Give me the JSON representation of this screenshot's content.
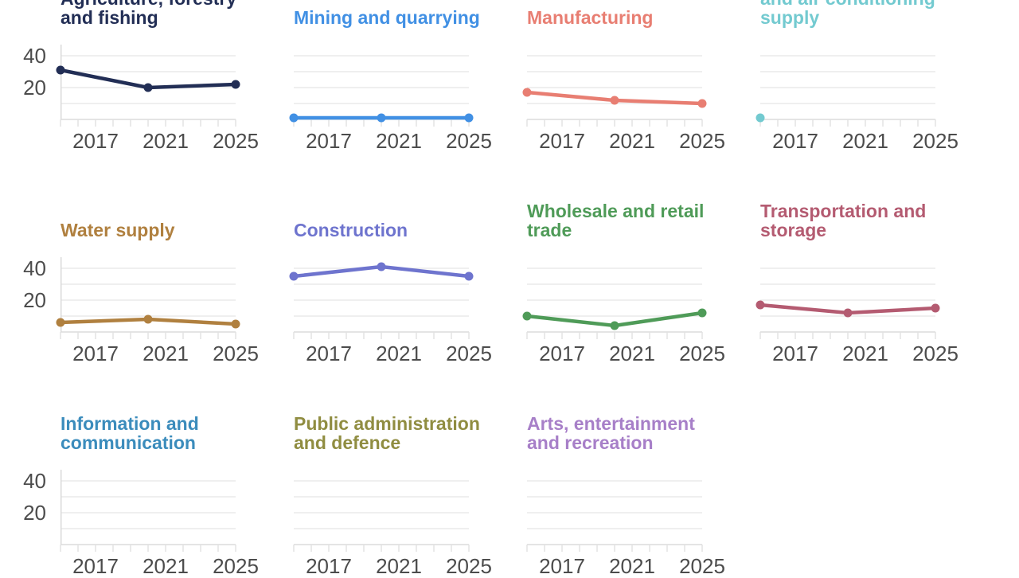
{
  "chart_data": {
    "type": "line",
    "layout": {
      "kind": "small-multiples",
      "grid": "4 columns x 3 rows, 11 panels, cropped at top and bottom",
      "x_points": [
        2015,
        2020,
        2025
      ],
      "x_range": [
        2015,
        2025
      ],
      "x_tick_labels": [
        "2017",
        "2021",
        "2025"
      ],
      "minor_x_ticks": "every year",
      "y_tick_labels": [
        "40",
        "20"
      ],
      "y_tick_values": [
        40,
        20
      ],
      "gridline_values": [
        10,
        20,
        30,
        40
      ],
      "ylim": [
        0,
        47
      ],
      "grid_on": true,
      "legend": "none - panel titles colored to match lines"
    },
    "series": [
      {
        "name": "Agriculture, forestry and fishing",
        "title_lines": [
          "Agriculture, forestry",
          "and fishing"
        ],
        "color": "#222e55",
        "values": [
          31,
          20,
          22
        ]
      },
      {
        "name": "Mining and quarrying",
        "title_lines": [
          "Mining and quarrying"
        ],
        "color": "#4190e4",
        "values": [
          1,
          1,
          1
        ]
      },
      {
        "name": "Manufacturing",
        "title_lines": [
          "Manufacturing"
        ],
        "color": "#e87e72",
        "values": [
          17,
          12,
          10
        ]
      },
      {
        "name": "and air conditioning supply",
        "title_lines": [
          "and air conditioning",
          "supply"
        ],
        "color": "#73cad0",
        "values": [
          1,
          null,
          null
        ]
      },
      {
        "name": "Water supply",
        "title_lines": [
          "Water supply"
        ],
        "color": "#b0803f",
        "values": [
          6,
          8,
          5
        ]
      },
      {
        "name": "Construction",
        "title_lines": [
          "Construction"
        ],
        "color": "#6e74ce",
        "values": [
          35,
          41,
          35
        ]
      },
      {
        "name": "Wholesale and retail trade",
        "title_lines": [
          "Wholesale and retail",
          "trade"
        ],
        "color": "#4f9b58",
        "values": [
          10,
          4,
          12
        ]
      },
      {
        "name": "Transportation and storage",
        "title_lines": [
          "Transportation and",
          "storage"
        ],
        "color": "#b45b71",
        "values": [
          17,
          12,
          15
        ]
      },
      {
        "name": "Information and communication",
        "title_lines": [
          "Information and",
          "communication"
        ],
        "color": "#3b8cbc",
        "values": null
      },
      {
        "name": "Public administration and defence",
        "title_lines": [
          "Public administration",
          "and defence"
        ],
        "color": "#908d41",
        "values": null
      },
      {
        "name": "Arts, entertainment and recreation",
        "title_lines": [
          "Arts, entertainment",
          "and recreation"
        ],
        "color": "#a77fc8",
        "values": null
      }
    ]
  },
  "styles": {
    "background": "#ffffff",
    "axis_text_color": "#4c4c4c",
    "gridline_color": "#e5e5e5",
    "baseline_color": "#dcdcdc",
    "tick_color": "#e0e0e0",
    "yaxis_line_color": "#d8d8d8"
  }
}
